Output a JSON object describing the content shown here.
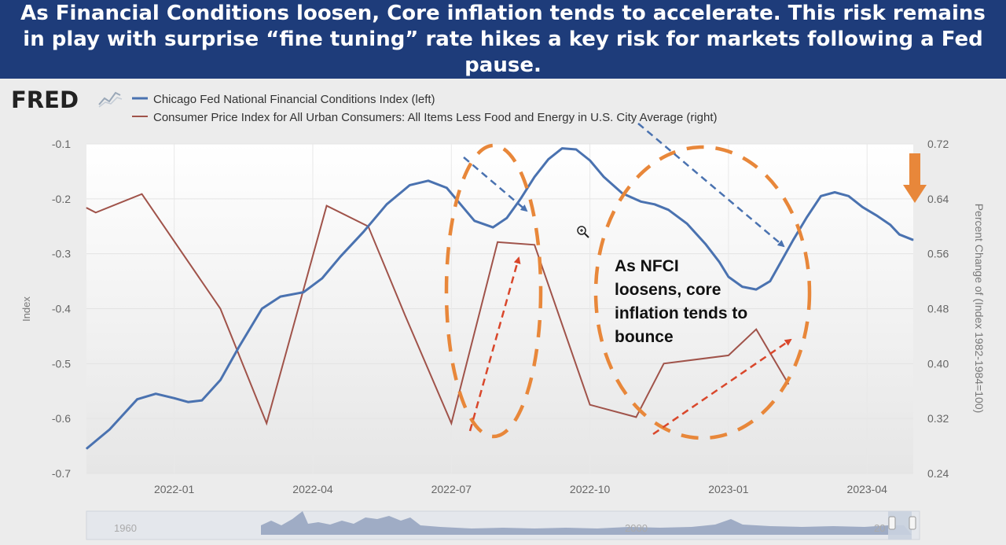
{
  "headline": "As Financial Conditions loosen, Core inflation tends to accelerate. This risk remains in play with surprise “fine tuning” rate hikes a key risk for markets following a Fed pause.",
  "brand": "FRED",
  "colors": {
    "banner": "#1e3c7a",
    "nfci": "#4a72b0",
    "cpi": "#a0534a",
    "annotation": "#e8873a",
    "arrow_blue": "#4a72b0",
    "arrow_red": "#d9472b"
  },
  "icons": {
    "logo_graph": "chart-line-icon",
    "zoom": "zoom-in-icon",
    "down_arrow": "arrow-down-icon"
  },
  "annotation_text": [
    "As NFCI",
    "loosens, core",
    "inflation tends to",
    "bounce"
  ],
  "chart_data": {
    "type": "line",
    "title": "",
    "x_tick_labels": [
      "2022-01",
      "2022-04",
      "2022-07",
      "2022-10",
      "2023-01",
      "2023-04"
    ],
    "x_tick_months": [
      12,
      15,
      18,
      21,
      24,
      27
    ],
    "x_range_months": [
      10.1,
      28.0
    ],
    "left_axis": {
      "label": "Index",
      "range": [
        -0.7,
        -0.1
      ],
      "ticks": [
        "-0.1",
        "-0.2",
        "-0.3",
        "-0.4",
        "-0.5",
        "-0.6",
        "-0.7"
      ]
    },
    "right_axis": {
      "label": "Percent Change of (Index 1982-1984=100)",
      "range": [
        0.24,
        0.72
      ],
      "ticks": [
        "0.72",
        "0.64",
        "0.56",
        "0.48",
        "0.40",
        "0.32",
        "0.24"
      ]
    },
    "series": [
      {
        "name": "Chicago Fed National Financial Conditions Index (left)",
        "axis": "left",
        "x": [
          10.1,
          10.6,
          11.2,
          11.6,
          12.0,
          12.3,
          12.6,
          13.0,
          13.4,
          13.9,
          14.3,
          14.8,
          15.2,
          15.6,
          16.1,
          16.6,
          17.1,
          17.5,
          17.9,
          18.2,
          18.5,
          18.9,
          19.2,
          19.5,
          19.8,
          20.1,
          20.4,
          20.7,
          21.0,
          21.3,
          21.7,
          22.1,
          22.4,
          22.7,
          23.1,
          23.5,
          23.8,
          24.0,
          24.3,
          24.6,
          24.9,
          25.1,
          25.4,
          25.7,
          26.0,
          26.3,
          26.6,
          26.9,
          27.2,
          27.5,
          27.7,
          28.0
        ],
        "values": [
          -0.655,
          -0.62,
          -0.565,
          -0.555,
          -0.563,
          -0.57,
          -0.567,
          -0.53,
          -0.47,
          -0.4,
          -0.378,
          -0.37,
          -0.345,
          -0.305,
          -0.26,
          -0.21,
          -0.175,
          -0.167,
          -0.18,
          -0.21,
          -0.24,
          -0.252,
          -0.235,
          -0.2,
          -0.16,
          -0.128,
          -0.108,
          -0.11,
          -0.13,
          -0.16,
          -0.19,
          -0.205,
          -0.21,
          -0.22,
          -0.245,
          -0.282,
          -0.315,
          -0.342,
          -0.36,
          -0.365,
          -0.35,
          -0.32,
          -0.275,
          -0.233,
          -0.195,
          -0.188,
          -0.195,
          -0.215,
          -0.23,
          -0.247,
          -0.265,
          -0.275
        ]
      },
      {
        "name": "Consumer Price Index for All Urban Consumers: All Items Less Food and Energy in U.S. City Average (right)",
        "axis": "right",
        "x": [
          10.1,
          10.3,
          11.3,
          13.0,
          14.0,
          15.3,
          16.2,
          17.0,
          18.0,
          19.0,
          19.8,
          21.0,
          22.0,
          22.6,
          24.0,
          24.6,
          25.3
        ],
        "values": [
          0.627,
          0.62,
          0.647,
          0.48,
          0.313,
          0.63,
          0.6,
          0.47,
          0.313,
          0.577,
          0.573,
          0.34,
          0.322,
          0.4,
          0.412,
          0.45,
          0.37
        ]
      }
    ],
    "legend_position": "top-left",
    "grid": true
  },
  "navigator": {
    "labels": [
      "1960",
      "2000",
      "20"
    ]
  }
}
